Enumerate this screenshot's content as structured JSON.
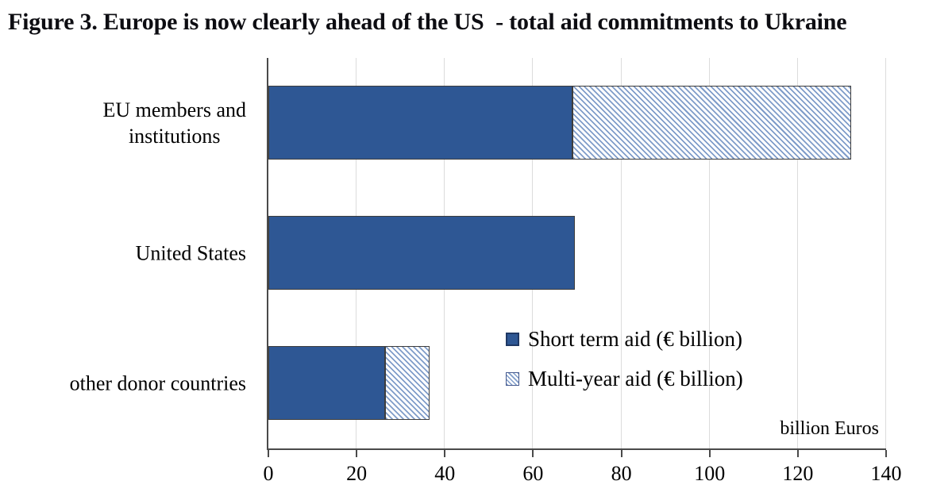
{
  "title": "Figure 3. Europe is now clearly ahead of the US  - total aid commitments to Ukraine",
  "chart_data": {
    "type": "bar",
    "orientation": "horizontal",
    "stacked": true,
    "categories": [
      "EU members and institutions",
      "United States",
      "other donor countries"
    ],
    "categories_display": [
      [
        "EU members and",
        "institutions"
      ],
      [
        "United States"
      ],
      [
        "other donor countries"
      ]
    ],
    "series": [
      {
        "name": "Short term aid (€ billion)",
        "style": "solid",
        "color": "#2e5794",
        "values": [
          69,
          69.5,
          26.5
        ]
      },
      {
        "name": "Multi-year aid (€ billion)",
        "style": "hatched",
        "color": "#7f9cc9",
        "values": [
          63,
          0,
          10
        ]
      }
    ],
    "totals": [
      132,
      69.5,
      36.5
    ],
    "xlabel": "billion Euros",
    "ylabel": "",
    "xlim": [
      0,
      140
    ],
    "xticks": [
      0,
      20,
      40,
      60,
      80,
      100,
      120,
      140
    ],
    "grid": "vertical-major",
    "legend_position": "inside-plot-right-middle"
  },
  "colors": {
    "bar_solid": "#2e5794",
    "bar_hatch_line": "#7f9cc9",
    "bar_border": "#3d3d3d",
    "axis": "#4a4a4a",
    "gridline": "#dcdcdc",
    "text": "#000000",
    "background": "#ffffff"
  }
}
